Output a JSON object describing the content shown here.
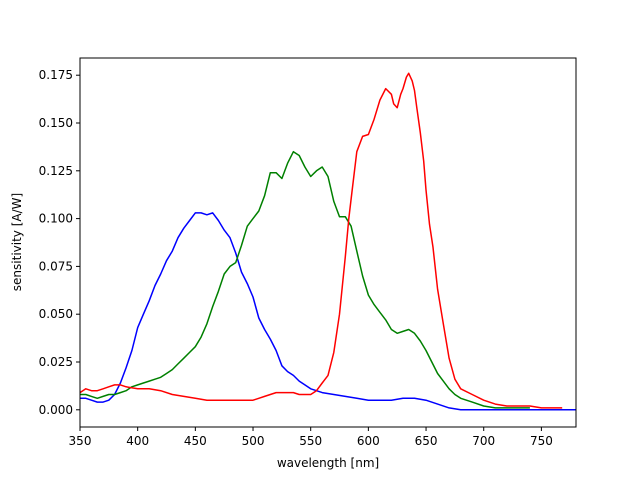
{
  "chart_data": {
    "type": "line",
    "title": "",
    "xlabel": "wavelength [nm]",
    "ylabel": "sensitivity [A/W]",
    "xlim": [
      350,
      780
    ],
    "ylim": [
      -0.009,
      0.184
    ],
    "grid": false,
    "legend": "none",
    "xticks": [
      350,
      400,
      450,
      500,
      550,
      600,
      650,
      700,
      750
    ],
    "xtick_labels": [
      "350",
      "400",
      "450",
      "500",
      "550",
      "600",
      "650",
      "700",
      "750"
    ],
    "yticks": [
      0.0,
      0.025,
      0.05,
      0.075,
      0.1,
      0.125,
      0.15,
      0.175
    ],
    "ytick_labels": [
      "0.000",
      "0.025",
      "0.050",
      "0.075",
      "0.100",
      "0.125",
      "0.150",
      "0.175"
    ],
    "series": [
      {
        "color": "#0000ff",
        "x": [
          350,
          355,
          360,
          365,
          370,
          375,
          380,
          385,
          390,
          395,
          400,
          405,
          410,
          415,
          420,
          425,
          430,
          435,
          440,
          445,
          450,
          455,
          460,
          465,
          470,
          475,
          480,
          485,
          490,
          495,
          500,
          505,
          510,
          515,
          520,
          525,
          530,
          535,
          540,
          545,
          550,
          555,
          560,
          570,
          580,
          590,
          600,
          610,
          620,
          630,
          640,
          650,
          660,
          670,
          680,
          700,
          750,
          780
        ],
        "y": [
          0.006,
          0.006,
          0.005,
          0.004,
          0.004,
          0.005,
          0.008,
          0.014,
          0.022,
          0.031,
          0.043,
          0.05,
          0.057,
          0.065,
          0.071,
          0.078,
          0.083,
          0.09,
          0.095,
          0.099,
          0.103,
          0.103,
          0.102,
          0.103,
          0.099,
          0.094,
          0.09,
          0.082,
          0.072,
          0.066,
          0.059,
          0.048,
          0.042,
          0.037,
          0.031,
          0.023,
          0.02,
          0.018,
          0.015,
          0.013,
          0.011,
          0.01,
          0.009,
          0.008,
          0.007,
          0.006,
          0.005,
          0.005,
          0.005,
          0.006,
          0.006,
          0.005,
          0.003,
          0.001,
          0.0,
          0.0,
          0.0,
          0.0
        ]
      },
      {
        "color": "#008000",
        "x": [
          350,
          355,
          360,
          365,
          370,
          375,
          380,
          385,
          390,
          395,
          400,
          405,
          410,
          415,
          420,
          425,
          430,
          435,
          440,
          445,
          450,
          455,
          460,
          465,
          470,
          475,
          480,
          485,
          490,
          495,
          500,
          505,
          510,
          515,
          520,
          525,
          530,
          535,
          540,
          545,
          550,
          555,
          560,
          565,
          570,
          575,
          580,
          585,
          590,
          595,
          600,
          605,
          610,
          615,
          620,
          625,
          630,
          635,
          640,
          645,
          650,
          655,
          660,
          665,
          670,
          675,
          680,
          690,
          700,
          710,
          720,
          740
        ],
        "y": [
          0.008,
          0.008,
          0.007,
          0.006,
          0.007,
          0.008,
          0.008,
          0.009,
          0.01,
          0.012,
          0.013,
          0.014,
          0.015,
          0.016,
          0.017,
          0.019,
          0.021,
          0.024,
          0.027,
          0.03,
          0.033,
          0.038,
          0.045,
          0.054,
          0.062,
          0.071,
          0.075,
          0.077,
          0.086,
          0.096,
          0.1,
          0.104,
          0.112,
          0.124,
          0.124,
          0.121,
          0.129,
          0.135,
          0.133,
          0.127,
          0.122,
          0.125,
          0.127,
          0.122,
          0.109,
          0.101,
          0.101,
          0.096,
          0.083,
          0.07,
          0.06,
          0.055,
          0.051,
          0.047,
          0.042,
          0.04,
          0.041,
          0.042,
          0.04,
          0.036,
          0.031,
          0.025,
          0.019,
          0.015,
          0.011,
          0.008,
          0.006,
          0.004,
          0.002,
          0.001,
          0.001,
          0.001
        ]
      },
      {
        "color": "#ff0000",
        "x": [
          350,
          355,
          360,
          365,
          370,
          375,
          380,
          385,
          390,
          400,
          410,
          420,
          430,
          440,
          450,
          460,
          470,
          480,
          490,
          495,
          500,
          505,
          510,
          515,
          520,
          525,
          530,
          535,
          540,
          545,
          550,
          555,
          560,
          565,
          570,
          575,
          580,
          583,
          586,
          590,
          595,
          600,
          605,
          610,
          615,
          620,
          622,
          625,
          628,
          630,
          633,
          635,
          638,
          640,
          642,
          645,
          648,
          650,
          653,
          656,
          660,
          665,
          670,
          675,
          680,
          690,
          700,
          710,
          720,
          730,
          740,
          750,
          760,
          768
        ],
        "y": [
          0.009,
          0.011,
          0.01,
          0.01,
          0.011,
          0.012,
          0.013,
          0.013,
          0.012,
          0.011,
          0.011,
          0.01,
          0.008,
          0.007,
          0.006,
          0.005,
          0.005,
          0.005,
          0.005,
          0.005,
          0.005,
          0.006,
          0.007,
          0.008,
          0.009,
          0.009,
          0.009,
          0.009,
          0.008,
          0.008,
          0.008,
          0.01,
          0.014,
          0.018,
          0.03,
          0.05,
          0.08,
          0.1,
          0.115,
          0.135,
          0.143,
          0.144,
          0.152,
          0.162,
          0.168,
          0.165,
          0.16,
          0.158,
          0.165,
          0.168,
          0.174,
          0.176,
          0.172,
          0.167,
          0.158,
          0.145,
          0.13,
          0.115,
          0.097,
          0.085,
          0.063,
          0.045,
          0.027,
          0.016,
          0.011,
          0.008,
          0.005,
          0.003,
          0.002,
          0.002,
          0.002,
          0.001,
          0.001,
          0.001
        ]
      }
    ]
  }
}
